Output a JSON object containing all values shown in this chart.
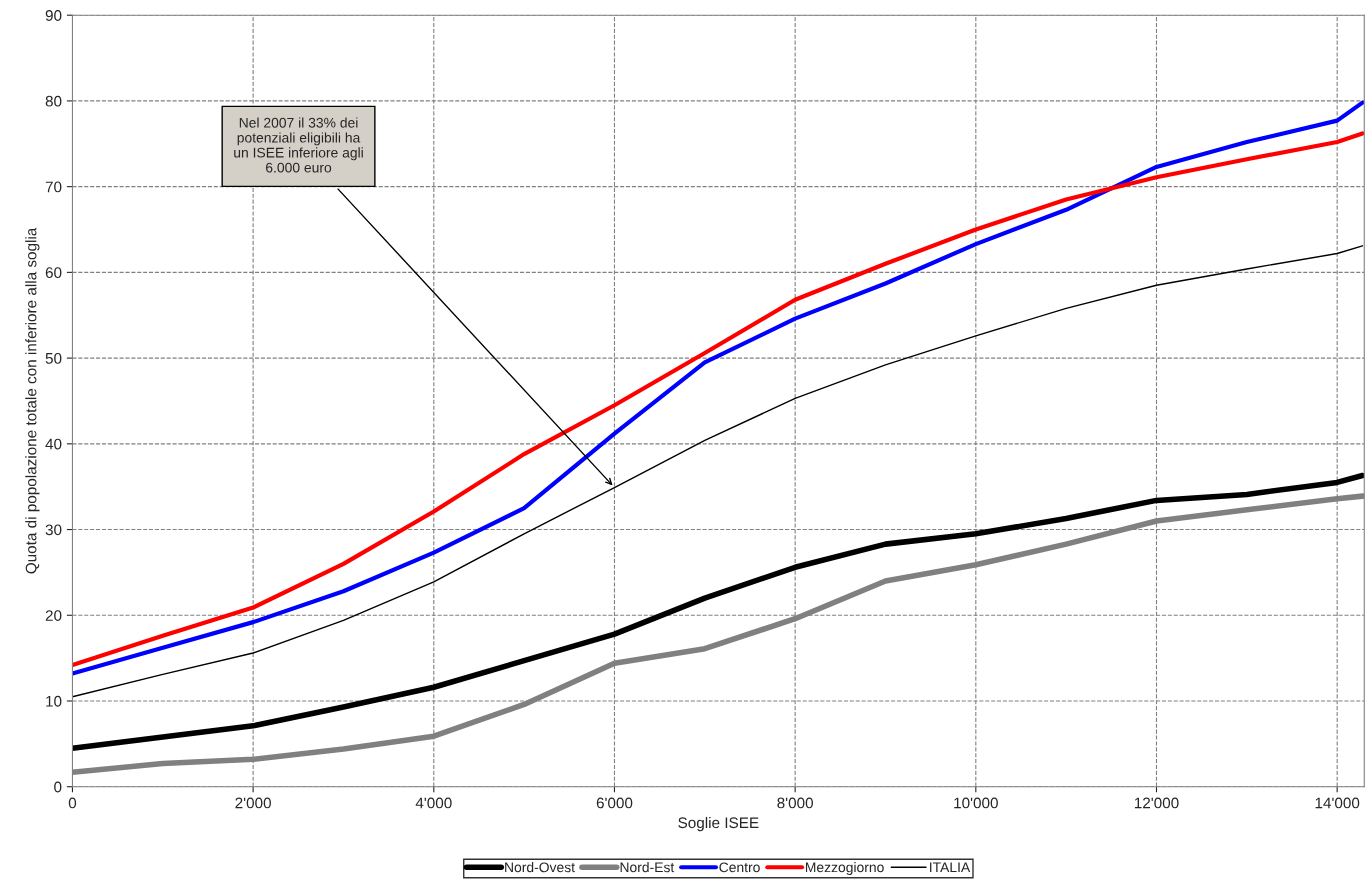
{
  "chart_data": {
    "type": "line",
    "xlabel": "Soglie ISEE",
    "ylabel": "Quota di popolazione totale con inferiore alla soglia",
    "x": [
      0,
      1000,
      2000,
      3000,
      4000,
      5000,
      6000,
      7000,
      8000,
      9000,
      10000,
      11000,
      12000,
      13000,
      14000,
      14280
    ],
    "series": [
      {
        "name": "Nord-Ovest",
        "color": "#000000",
        "values": [
          4.5,
          5.8,
          7.1,
          9.3,
          11.6,
          14.7,
          17.8,
          22,
          25.6,
          28.3,
          29.5,
          31.3,
          33.4,
          34.1,
          35.5,
          36.3
        ]
      },
      {
        "name": "Nord-Est",
        "color": "#808080",
        "values": [
          1.7,
          2.7,
          3.2,
          4.4,
          5.9,
          9.6,
          14.4,
          16.1,
          19.6,
          24,
          25.9,
          28.3,
          31,
          32.3,
          33.6,
          33.9
        ]
      },
      {
        "name": "Centro",
        "color": "#0000ff",
        "values": [
          13.2,
          16.2,
          19.2,
          22.8,
          27.3,
          32.5,
          41.2,
          49.5,
          54.6,
          58.7,
          63.3,
          67.3,
          72.3,
          75.2,
          77.7,
          79.8
        ]
      },
      {
        "name": "Mezzogiorno",
        "color": "#ff0000",
        "values": [
          14.2,
          17.6,
          20.9,
          26,
          32.1,
          38.8,
          44.5,
          50.6,
          56.8,
          61,
          65,
          68.5,
          71.1,
          73.2,
          75.2,
          76.2
        ]
      },
      {
        "name": "ITALIA",
        "color": "#000000",
        "values": [
          10.5,
          13.1,
          15.6,
          19.4,
          23.9,
          29.5,
          34.9,
          40.4,
          45.3,
          49.2,
          52.6,
          55.8,
          58.5,
          60.4,
          62.2,
          63.1
        ]
      }
    ],
    "annotations": [
      {
        "text": "Nel 2007 il 33% dei\npotenziali eligibili ha\nun ISEE inferiore agli\n6.000 euro",
        "x": 6000,
        "y": 34.9
      }
    ],
    "xlim": [
      0,
      14300
    ],
    "ylim": [
      0,
      90
    ],
    "xticks": [
      0,
      {
        "value": 2000,
        "label": "2'000"
      },
      {
        "value": 4000,
        "label": "4'000"
      },
      {
        "value": 6000,
        "label": "6'000"
      },
      {
        "value": 8000,
        "label": "8'000"
      },
      {
        "value": 10000,
        "label": "10'000"
      },
      {
        "value": 12000,
        "label": "12'000"
      },
      {
        "value": 14000,
        "label": "14'000"
      }
    ],
    "yticks": [
      0,
      10,
      20,
      30,
      40,
      50,
      60,
      70,
      80,
      90
    ],
    "grid": true,
    "legend": "bottom"
  }
}
